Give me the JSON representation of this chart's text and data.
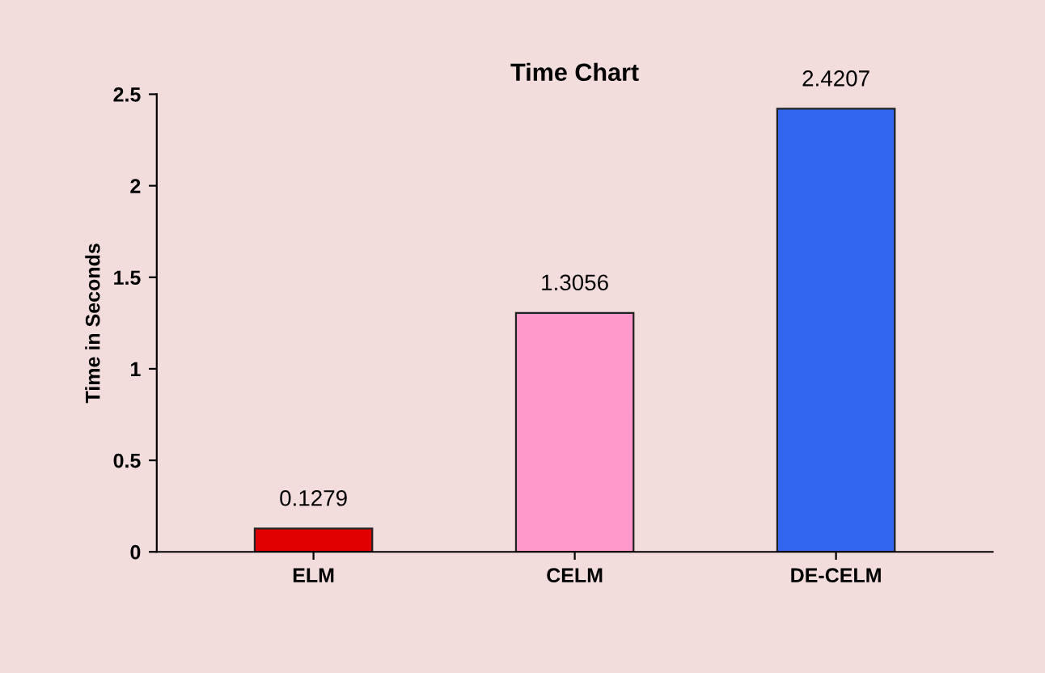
{
  "chart_data": {
    "type": "bar",
    "title": "Time Chart",
    "ylabel": "Time in Seconds",
    "categories": [
      "ELM",
      "CELM",
      "DE-CELM"
    ],
    "values": [
      0.1279,
      1.3056,
      2.4207
    ],
    "colors": [
      "#e00000",
      "#ff99cc",
      "#3366ee"
    ],
    "ylim": [
      0,
      2.5
    ],
    "yticks": [
      0,
      0.5,
      1,
      1.5,
      2,
      2.5
    ],
    "grid": false,
    "data_labels": true
  }
}
